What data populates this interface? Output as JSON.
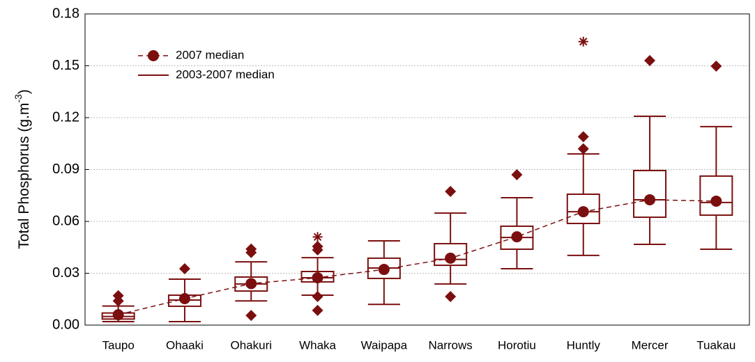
{
  "chart_data": {
    "type": "box",
    "y_label": "Total Phosphorus (g.m",
    "y_label_sup": "-3",
    "y_label_end": ")",
    "categories": [
      "Taupo",
      "Ohaaki",
      "Ohakuri",
      "Whaka",
      "Waipapa",
      "Narrows",
      "Horotiu",
      "Huntly",
      "Mercer",
      "Tuakau"
    ],
    "series": [
      {
        "name": "2007 median",
        "color": "#7b0f0f",
        "values": [
          0.006,
          0.0153,
          0.024,
          0.0274,
          0.0322,
          0.0387,
          0.0511,
          0.0656,
          0.0725,
          0.0717
        ]
      }
    ],
    "boxes": {
      "name": "2003-2007 median",
      "color": "#7b0f0f",
      "min": [
        0.002,
        0.002,
        0.014,
        0.0173,
        0.012,
        0.0238,
        0.0326,
        0.0403,
        0.0467,
        0.0439
      ],
      "q1": [
        0.0035,
        0.0109,
        0.0197,
        0.025,
        0.027,
        0.0346,
        0.0439,
        0.0588,
        0.0624,
        0.0636
      ],
      "median": [
        0.005,
        0.0145,
        0.0238,
        0.0274,
        0.033,
        0.038,
        0.0507,
        0.0656,
        0.0725,
        0.0709
      ],
      "q3": [
        0.007,
        0.0173,
        0.0278,
        0.031,
        0.0387,
        0.0471,
        0.0572,
        0.0757,
        0.0894,
        0.0862
      ],
      "max": [
        0.011,
        0.0266,
        0.0366,
        0.039,
        0.0487,
        0.0648,
        0.0737,
        0.099,
        0.1208,
        0.1148
      ],
      "outliers": [
        [
          0.014,
          0.017
        ],
        [
          0.0326
        ],
        [
          0.044,
          0.042,
          0.0056
        ],
        [
          0.0455,
          0.0435,
          0.0165,
          0.0085
        ],
        [],
        [
          0.0773,
          0.0165
        ],
        [
          0.087
        ],
        [
          0.109,
          0.102
        ],
        [
          0.153
        ],
        [
          0.1498
        ]
      ],
      "extremes": [
        [],
        [],
        [],
        [
          0.051
        ],
        [],
        [],
        [],
        [
          0.164
        ],
        [],
        []
      ]
    },
    "ylim": [
      0,
      0.18
    ],
    "yticks": [
      {
        "value": 0,
        "label": "0.00"
      },
      0.03,
      0.06,
      0.09,
      0.12,
      0.15,
      0.18
    ],
    "grid": true
  }
}
